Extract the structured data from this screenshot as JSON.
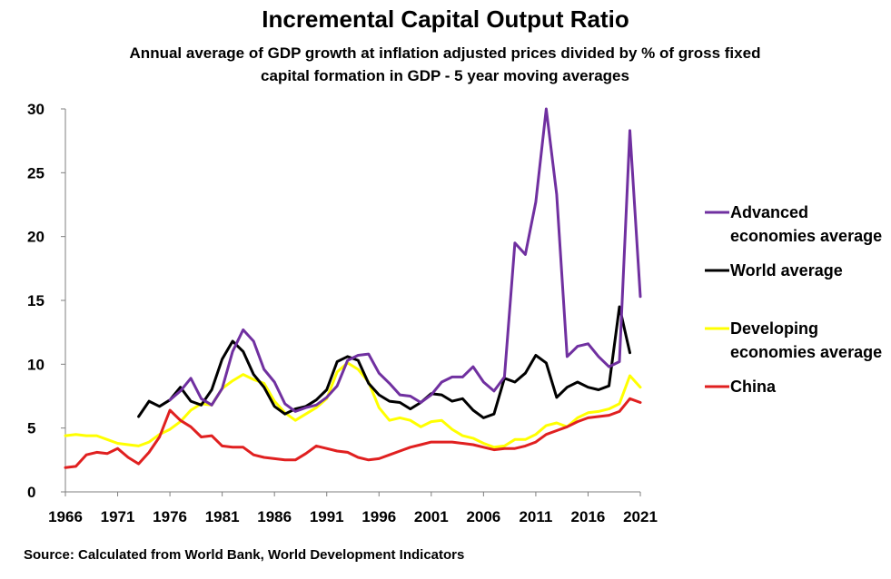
{
  "chart_data": {
    "type": "line",
    "title": "Incremental Capital Output Ratio",
    "subtitle": "Annual average of GDP growth at inflation adjusted prices divided by % of gross fixed capital formation in GDP - 5 year moving averages",
    "source": "Source: Calculated from World Bank, World Development Indicators",
    "xlabel": "",
    "ylabel": "",
    "xlim": [
      1966,
      2021
    ],
    "ylim": [
      0,
      30
    ],
    "x_ticks": [
      1966,
      1971,
      1976,
      1981,
      1986,
      1991,
      1996,
      2001,
      2006,
      2011,
      2016,
      2021
    ],
    "y_ticks": [
      0,
      5,
      10,
      15,
      20,
      25,
      30
    ],
    "grid": false,
    "legend_position": "right",
    "series": [
      {
        "name": "Advanced economies average",
        "legend_lines": [
          "Advanced",
          "economies average"
        ],
        "color": "#7030A0",
        "x": [
          1976,
          1977,
          1978,
          1979,
          1980,
          1981,
          1982,
          1983,
          1984,
          1985,
          1986,
          1987,
          1988,
          1989,
          1990,
          1991,
          1992,
          1993,
          1994,
          1995,
          1996,
          1997,
          1998,
          1999,
          2000,
          2001,
          2002,
          2003,
          2004,
          2005,
          2006,
          2007,
          2008,
          2009,
          2010,
          2011,
          2012,
          2013,
          2014,
          2015,
          2016,
          2017,
          2018,
          2019,
          2020,
          2021
        ],
        "values": [
          7.2,
          7.9,
          8.9,
          7.3,
          6.8,
          8.1,
          11.0,
          12.7,
          11.8,
          9.6,
          8.6,
          6.9,
          6.3,
          6.6,
          6.8,
          7.4,
          8.3,
          10.3,
          10.7,
          10.8,
          9.3,
          8.5,
          7.6,
          7.5,
          7.0,
          7.6,
          8.6,
          9.0,
          9.0,
          9.8,
          8.6,
          7.9,
          9.0,
          19.5,
          18.6,
          22.7,
          30.0,
          23.3,
          10.6,
          11.4,
          11.6,
          10.6,
          9.8,
          10.2,
          28.3,
          15.3
        ]
      },
      {
        "name": "World average",
        "legend_lines": [
          "World average"
        ],
        "color": "#000000",
        "x": [
          1973,
          1974,
          1975,
          1976,
          1977,
          1978,
          1979,
          1980,
          1981,
          1982,
          1983,
          1984,
          1985,
          1986,
          1987,
          1988,
          1989,
          1990,
          1991,
          1992,
          1993,
          1994,
          1995,
          1996,
          1997,
          1998,
          1999,
          2000,
          2001,
          2002,
          2003,
          2004,
          2005,
          2006,
          2007,
          2008,
          2009,
          2010,
          2011,
          2012,
          2013,
          2014,
          2015,
          2016,
          2017,
          2018,
          2019,
          2020,
          2021
        ],
        "values": [
          5.9,
          7.1,
          6.7,
          7.2,
          8.2,
          7.1,
          6.8,
          8.0,
          10.4,
          11.8,
          11.0,
          9.2,
          8.2,
          6.7,
          6.1,
          6.5,
          6.7,
          7.2,
          8.0,
          10.2,
          10.6,
          10.3,
          8.5,
          7.6,
          7.1,
          7.0,
          6.5,
          7.0,
          7.7,
          7.6,
          7.1,
          7.3,
          6.4,
          5.8,
          6.1,
          8.9,
          8.6,
          9.3,
          10.7,
          10.1,
          7.4,
          8.2,
          8.6,
          8.2,
          8.0,
          8.3,
          14.5,
          10.9,
          null
        ]
      },
      {
        "name": "Developing economies average",
        "legend_lines": [
          "Developing",
          "economies average"
        ],
        "color": "#FFFF00",
        "x": [
          1966,
          1967,
          1968,
          1969,
          1970,
          1971,
          1972,
          1973,
          1974,
          1975,
          1976,
          1977,
          1978,
          1979,
          1980,
          1981,
          1982,
          1983,
          1984,
          1985,
          1986,
          1987,
          1988,
          1989,
          1990,
          1991,
          1992,
          1993,
          1994,
          1995,
          1996,
          1997,
          1998,
          1999,
          2000,
          2001,
          2002,
          2003,
          2004,
          2005,
          2006,
          2007,
          2008,
          2009,
          2010,
          2011,
          2012,
          2013,
          2014,
          2015,
          2016,
          2017,
          2018,
          2019,
          2020,
          2021
        ],
        "values": [
          4.4,
          4.5,
          4.4,
          4.4,
          4.1,
          3.8,
          3.7,
          3.6,
          3.9,
          4.5,
          4.9,
          5.5,
          6.4,
          6.9,
          6.8,
          8.1,
          8.7,
          9.2,
          8.8,
          8.5,
          7.1,
          6.2,
          5.6,
          6.1,
          6.6,
          7.3,
          9.4,
          10.1,
          9.6,
          8.6,
          6.6,
          5.6,
          5.8,
          5.6,
          5.1,
          5.5,
          5.6,
          4.9,
          4.4,
          4.2,
          3.8,
          3.5,
          3.6,
          4.1,
          4.1,
          4.5,
          5.2,
          5.4,
          5.1,
          5.8,
          6.2,
          6.3,
          6.5,
          6.9,
          9.1,
          8.2
        ]
      },
      {
        "name": "China",
        "legend_lines": [
          "China"
        ],
        "color": "#E02020",
        "x": [
          1966,
          1967,
          1968,
          1969,
          1970,
          1971,
          1972,
          1973,
          1974,
          1975,
          1976,
          1977,
          1978,
          1979,
          1980,
          1981,
          1982,
          1983,
          1984,
          1985,
          1986,
          1987,
          1988,
          1989,
          1990,
          1991,
          1992,
          1993,
          1994,
          1995,
          1996,
          1997,
          1998,
          1999,
          2000,
          2001,
          2002,
          2003,
          2004,
          2005,
          2006,
          2007,
          2008,
          2009,
          2010,
          2011,
          2012,
          2013,
          2014,
          2015,
          2016,
          2017,
          2018,
          2019,
          2020,
          2021
        ],
        "values": [
          1.9,
          2.0,
          2.9,
          3.1,
          3.0,
          3.4,
          2.7,
          2.2,
          3.1,
          4.3,
          6.4,
          5.6,
          5.1,
          4.3,
          4.4,
          3.6,
          3.5,
          3.5,
          2.9,
          2.7,
          2.6,
          2.5,
          2.5,
          3.0,
          3.6,
          3.4,
          3.2,
          3.1,
          2.7,
          2.5,
          2.6,
          2.9,
          3.2,
          3.5,
          3.7,
          3.9,
          3.9,
          3.9,
          3.8,
          3.7,
          3.5,
          3.3,
          3.4,
          3.4,
          3.6,
          3.9,
          4.5,
          4.8,
          5.1,
          5.5,
          5.8,
          5.9,
          6.0,
          6.3,
          7.3,
          7.0
        ]
      }
    ]
  }
}
